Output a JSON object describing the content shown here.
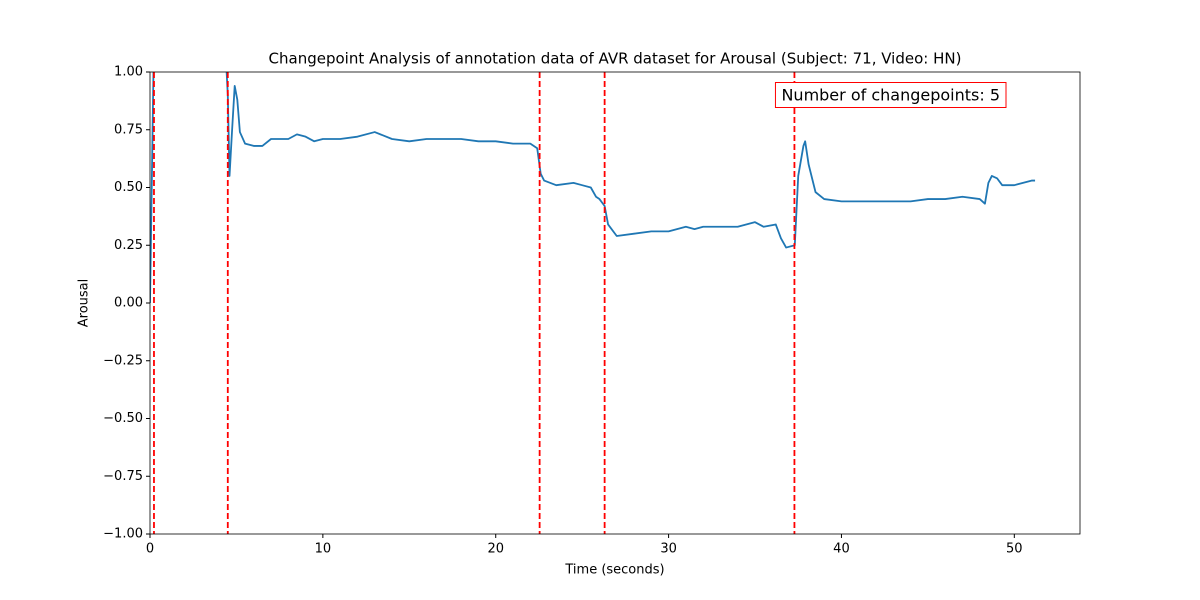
{
  "chart_data": {
    "type": "line",
    "title": "Changepoint Analysis of annotation data of AVR dataset for Arousal (Subject: 71, Video: HN)",
    "x_label": "Time (seconds)",
    "y_label": "Arousal",
    "annotation": "Number of changepoints: 5",
    "annotation_color": "#ff0000",
    "xlim": [
      0,
      53.8
    ],
    "ylim": [
      -1,
      1
    ],
    "xticks": [
      0,
      10,
      20,
      30,
      40,
      50
    ],
    "yticks": [
      {
        "value": -1,
        "label": "−1.00"
      },
      {
        "value": -0.75,
        "label": "−0.75"
      },
      {
        "value": -0.5,
        "label": "−0.50"
      },
      {
        "value": -0.25,
        "label": "−0.25"
      },
      {
        "value": 0,
        "label": "0.00"
      },
      {
        "value": 0.25,
        "label": "0.25"
      },
      {
        "value": 0.5,
        "label": "0.50"
      },
      {
        "value": 0.75,
        "label": "0.75"
      },
      {
        "value": 1,
        "label": "1.00"
      }
    ],
    "changepoints": [
      0.23,
      4.5,
      22.54,
      26.3,
      37.28
    ],
    "changepoint_color": "#ff0000",
    "series": [
      {
        "color": "#1f77b4",
        "x": [
          0,
          0.1,
          0.2,
          0.3,
          4.4,
          4.5,
          4.6,
          4.75,
          4.9,
          5.05,
          5.2,
          5.5,
          6,
          6.5,
          7,
          8,
          8.5,
          9,
          9.5,
          10,
          11,
          12,
          13,
          14,
          15,
          16,
          17,
          18,
          19,
          20,
          21,
          22,
          22.4,
          22.6,
          22.8,
          23.5,
          24.5,
          25,
          25.5,
          25.8,
          26,
          26.3,
          26.5,
          27,
          28,
          29,
          30,
          31,
          31.5,
          32,
          33,
          34,
          35,
          35.5,
          36.2,
          36.5,
          36.8,
          37.3,
          37.5,
          37.8,
          37.9,
          38.1,
          38.5,
          39,
          40,
          41,
          42,
          43,
          44,
          45,
          46,
          47,
          48,
          48.3,
          48.5,
          48.7,
          49,
          49.3,
          50,
          50.5,
          51,
          51.2
        ],
        "values": [
          0,
          0.5,
          1,
          1.05,
          1.05,
          0.9,
          0.55,
          0.75,
          0.94,
          0.88,
          0.74,
          0.69,
          0.68,
          0.68,
          0.71,
          0.71,
          0.73,
          0.72,
          0.7,
          0.71,
          0.71,
          0.72,
          0.74,
          0.71,
          0.7,
          0.71,
          0.71,
          0.71,
          0.7,
          0.7,
          0.69,
          0.69,
          0.67,
          0.56,
          0.53,
          0.51,
          0.52,
          0.51,
          0.5,
          0.46,
          0.45,
          0.42,
          0.34,
          0.29,
          0.3,
          0.31,
          0.31,
          0.33,
          0.32,
          0.33,
          0.33,
          0.33,
          0.35,
          0.33,
          0.34,
          0.28,
          0.24,
          0.25,
          0.55,
          0.68,
          0.7,
          0.6,
          0.48,
          0.45,
          0.44,
          0.44,
          0.44,
          0.44,
          0.44,
          0.45,
          0.45,
          0.46,
          0.45,
          0.43,
          0.52,
          0.55,
          0.54,
          0.51,
          0.51,
          0.52,
          0.53,
          0.53
        ]
      }
    ]
  }
}
